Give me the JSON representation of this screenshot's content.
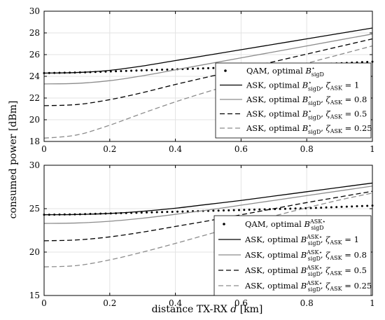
{
  "chart_data": [
    {
      "type": "line",
      "panel": "top",
      "xlim": [
        0,
        1
      ],
      "ylim": [
        18,
        30
      ],
      "xticks": [
        "0",
        "0.2",
        "0.4",
        "0.6",
        "0.8",
        "1"
      ],
      "yticks": [
        "18",
        "20",
        "22",
        "24",
        "26",
        "28",
        "30"
      ],
      "grid": true,
      "legend_position": "lower-right",
      "series": [
        {
          "name": "QAM, optimal B*sigD",
          "legend_main": "QAM, optimal ",
          "legend_sym": "B",
          "legend_sup": "⋆",
          "legend_sub": "sigD",
          "legend_zeta": "",
          "style": "dotted",
          "color": "#000000",
          "x": [
            0,
            0.1,
            0.2,
            0.3,
            0.4,
            0.5,
            0.6,
            0.7,
            0.8,
            0.9,
            1.0
          ],
          "values": [
            24.3,
            24.35,
            24.45,
            24.55,
            24.65,
            24.75,
            24.85,
            24.95,
            25.05,
            25.2,
            25.35
          ]
        },
        {
          "name": "ASK, optimal B*sigD, ζASK = 1",
          "legend_main": "ASK, optimal ",
          "legend_sym": "B",
          "legend_sup": "⋆",
          "legend_sub": "sigD",
          "legend_zeta": "1",
          "style": "solid",
          "color": "#000000",
          "x": [
            0,
            0.1,
            0.2,
            0.3,
            0.4,
            0.5,
            0.6,
            0.7,
            0.8,
            0.9,
            1.0
          ],
          "values": [
            24.3,
            24.35,
            24.55,
            24.95,
            25.45,
            25.95,
            26.45,
            26.95,
            27.45,
            27.95,
            28.45
          ]
        },
        {
          "name": "ASK, optimal B*sigD, ζASK = 0.8",
          "legend_main": "ASK, optimal ",
          "legend_sym": "B",
          "legend_sup": "⋆",
          "legend_sub": "sigD",
          "legend_zeta": "0.8",
          "style": "solid",
          "color": "#8c8c8c",
          "x": [
            0,
            0.1,
            0.2,
            0.3,
            0.4,
            0.5,
            0.6,
            0.7,
            0.8,
            0.9,
            1.0
          ],
          "values": [
            23.3,
            23.35,
            23.6,
            24.05,
            24.6,
            25.15,
            25.7,
            26.25,
            26.8,
            27.35,
            27.9
          ]
        },
        {
          "name": "ASK, optimal B*sigD, ζASK = 0.5",
          "legend_main": "ASK, optimal ",
          "legend_sym": "B",
          "legend_sup": "⋆",
          "legend_sub": "sigD",
          "legend_zeta": "0.5",
          "style": "dashed",
          "color": "#000000",
          "x": [
            0,
            0.1,
            0.2,
            0.3,
            0.4,
            0.5,
            0.6,
            0.7,
            0.8,
            0.9,
            1.0
          ],
          "values": [
            21.3,
            21.4,
            21.85,
            22.5,
            23.25,
            23.95,
            24.65,
            25.35,
            26.05,
            26.75,
            27.45
          ]
        },
        {
          "name": "ASK, optimal B*sigD, ζASK = 0.25",
          "legend_main": "ASK, optimal ",
          "legend_sym": "B",
          "legend_sup": "⋆",
          "legend_sub": "sigD",
          "legend_zeta": "0.25",
          "style": "dashed",
          "color": "#8c8c8c",
          "x": [
            0,
            0.1,
            0.2,
            0.3,
            0.4,
            0.5,
            0.6,
            0.7,
            0.8,
            0.9,
            1.0
          ],
          "values": [
            18.3,
            18.6,
            19.5,
            20.6,
            21.65,
            22.6,
            23.5,
            24.35,
            25.2,
            26.0,
            26.8
          ]
        }
      ]
    },
    {
      "type": "line",
      "panel": "bottom",
      "xlim": [
        0,
        1
      ],
      "ylim": [
        15,
        30
      ],
      "xticks": [
        "0",
        "0.2",
        "0.4",
        "0.6",
        "0.8",
        "1"
      ],
      "yticks": [
        "15",
        "20",
        "25",
        "30"
      ],
      "grid": true,
      "legend_position": "lower-right",
      "series": [
        {
          "name": "QAM, optimal B ASK*sigD",
          "legend_main": "QAM, optimal ",
          "legend_sym": "B",
          "legend_sup": "ASK⋆",
          "legend_sub": "sigD",
          "legend_zeta": "",
          "style": "dotted",
          "color": "#000000",
          "x": [
            0,
            0.1,
            0.2,
            0.3,
            0.4,
            0.5,
            0.6,
            0.7,
            0.8,
            0.9,
            1.0
          ],
          "values": [
            24.3,
            24.35,
            24.45,
            24.55,
            24.65,
            24.75,
            24.85,
            24.95,
            25.05,
            25.2,
            25.35
          ]
        },
        {
          "name": "ASK, optimal B ASK*sigD, ζASK = 1",
          "legend_main": "ASK, optimal ",
          "legend_sym": "B",
          "legend_sup": "ASK⋆",
          "legend_sub": "sigD",
          "legend_zeta": "1",
          "style": "solid",
          "color": "#000000",
          "x": [
            0,
            0.1,
            0.2,
            0.3,
            0.4,
            0.5,
            0.6,
            0.7,
            0.8,
            0.9,
            1.0
          ],
          "values": [
            24.3,
            24.33,
            24.45,
            24.7,
            25.05,
            25.5,
            25.95,
            26.45,
            26.95,
            27.45,
            27.95
          ]
        },
        {
          "name": "ASK, optimal B ASK*sigD, ζASK = 0.8",
          "legend_main": "ASK, optimal ",
          "legend_sym": "B",
          "legend_sup": "ASK⋆",
          "legend_sub": "sigD",
          "legend_zeta": "0.8",
          "style": "solid",
          "color": "#8c8c8c",
          "x": [
            0,
            0.1,
            0.2,
            0.3,
            0.4,
            0.5,
            0.6,
            0.7,
            0.8,
            0.9,
            1.0
          ],
          "values": [
            23.3,
            23.35,
            23.55,
            23.9,
            24.35,
            24.85,
            25.4,
            25.95,
            26.5,
            27.05,
            27.6
          ]
        },
        {
          "name": "ASK, optimal B ASK*sigD, ζASK = 0.5",
          "legend_main": "ASK, optimal ",
          "legend_sym": "B",
          "legend_sup": "ASK⋆",
          "legend_sub": "sigD",
          "legend_zeta": "0.5",
          "style": "dashed",
          "color": "#000000",
          "x": [
            0,
            0.1,
            0.2,
            0.3,
            0.4,
            0.5,
            0.6,
            0.7,
            0.8,
            0.9,
            1.0
          ],
          "values": [
            21.3,
            21.4,
            21.75,
            22.3,
            22.95,
            23.6,
            24.3,
            25.0,
            25.7,
            26.35,
            27.0
          ]
        },
        {
          "name": "ASK, optimal B ASK*sigD, ζASK = 0.25",
          "legend_main": "ASK, optimal ",
          "legend_sym": "B",
          "legend_sup": "ASK⋆",
          "legend_sub": "sigD",
          "legend_zeta": "0.25",
          "style": "dashed",
          "color": "#8c8c8c",
          "x": [
            0,
            0.1,
            0.2,
            0.3,
            0.4,
            0.5,
            0.6,
            0.7,
            0.8,
            0.9,
            1.0
          ],
          "values": [
            18.3,
            18.45,
            19.1,
            20.0,
            21.0,
            22.05,
            23.1,
            24.15,
            25.1,
            26.0,
            26.8
          ]
        }
      ]
    }
  ],
  "labels": {
    "ylabel": "consumed power [dBm]",
    "xlabel_main": "distance TX-RX ",
    "xlabel_var": "d",
    "xlabel_unit": " [km]",
    "zeta": "ζ",
    "zeta_sub": "ASK",
    "eq": " = "
  }
}
